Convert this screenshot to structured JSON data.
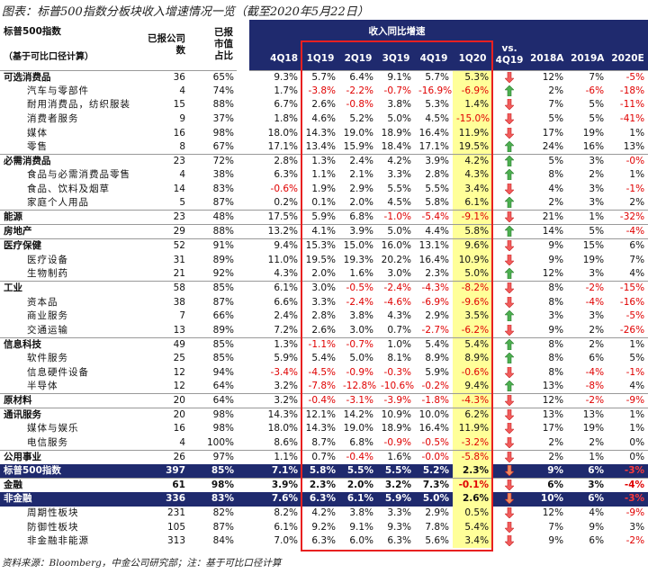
{
  "title": "图表：标普500指数分板块收入增速情况一览（截至2020年5月22日）",
  "header": {
    "name": "标普500指数",
    "name_note": "（基于可比口径计算）",
    "count": "已报公司数",
    "share": "已报市值占比",
    "growth": "收入同比增速",
    "vs": "vs. 4Q19",
    "first_quarter": "4Q18",
    "quarters": [
      "1Q19",
      "2Q19",
      "3Q19",
      "4Q19",
      "1Q20"
    ],
    "years": [
      "2018A",
      "2019A",
      "2020E"
    ]
  },
  "rows": [
    {
      "kind": "sector",
      "name": "可选消费品",
      "cells": [
        "36",
        "65%",
        "9.3%",
        "5.7%",
        "6.4%",
        "9.1%",
        "5.7%",
        "5.3%",
        "12%",
        "7%",
        "-5%"
      ],
      "trend": "down"
    },
    {
      "kind": "sub",
      "name": "汽车与零部件",
      "cells": [
        "4",
        "74%",
        "1.7%",
        "-3.8%",
        "-2.2%",
        "-0.7%",
        "-16.9%",
        "-6.9%",
        "2%",
        "-6%",
        "-18%"
      ],
      "trend": "up"
    },
    {
      "kind": "sub",
      "name": "耐用消费品，纺织服装",
      "cells": [
        "15",
        "88%",
        "6.7%",
        "2.6%",
        "-0.8%",
        "3.8%",
        "5.3%",
        "1.4%",
        "7%",
        "5%",
        "-11%"
      ],
      "trend": "down"
    },
    {
      "kind": "sub",
      "name": "消费者服务",
      "cells": [
        "9",
        "37%",
        "1.8%",
        "4.6%",
        "5.2%",
        "5.0%",
        "4.5%",
        "-15.0%",
        "5%",
        "5%",
        "-41%"
      ],
      "trend": "down"
    },
    {
      "kind": "sub",
      "name": "媒体",
      "cells": [
        "16",
        "98%",
        "18.0%",
        "14.3%",
        "19.0%",
        "18.9%",
        "16.4%",
        "11.9%",
        "17%",
        "19%",
        "1%"
      ],
      "trend": "down"
    },
    {
      "kind": "sub",
      "name": "零售",
      "cells": [
        "8",
        "67%",
        "17.1%",
        "13.4%",
        "15.9%",
        "18.4%",
        "17.1%",
        "19.5%",
        "24%",
        "16%",
        "13%"
      ],
      "trend": "up"
    },
    {
      "kind": "sector",
      "name": "必需消费品",
      "cells": [
        "23",
        "72%",
        "2.8%",
        "1.3%",
        "2.4%",
        "4.2%",
        "3.9%",
        "4.2%",
        "5%",
        "3%",
        "-0%"
      ],
      "trend": "up"
    },
    {
      "kind": "sub",
      "name": "食品与必需消费品零售",
      "cells": [
        "4",
        "38%",
        "6.3%",
        "1.1%",
        "2.1%",
        "3.3%",
        "2.8%",
        "4.3%",
        "8%",
        "2%",
        "1%"
      ],
      "trend": "up"
    },
    {
      "kind": "sub",
      "name": "食品、饮料及烟草",
      "cells": [
        "14",
        "83%",
        "-0.6%",
        "1.9%",
        "2.9%",
        "5.5%",
        "5.5%",
        "3.4%",
        "4%",
        "3%",
        "-1%"
      ],
      "trend": "down"
    },
    {
      "kind": "sub",
      "name": "家庭个人用品",
      "cells": [
        "5",
        "87%",
        "0.2%",
        "0.1%",
        "2.0%",
        "4.5%",
        "5.8%",
        "6.1%",
        "2%",
        "3%",
        "2%"
      ],
      "trend": "up"
    },
    {
      "kind": "sector",
      "name": "能源",
      "cells": [
        "23",
        "48%",
        "17.5%",
        "5.9%",
        "6.8%",
        "-1.0%",
        "-5.4%",
        "-9.1%",
        "21%",
        "1%",
        "-32%"
      ],
      "trend": "down"
    },
    {
      "kind": "sector",
      "name": "房地产",
      "cells": [
        "29",
        "88%",
        "13.2%",
        "4.1%",
        "3.9%",
        "5.0%",
        "4.4%",
        "5.8%",
        "14%",
        "5%",
        "-4%"
      ],
      "trend": "up"
    },
    {
      "kind": "sector",
      "name": "医疗保健",
      "cells": [
        "52",
        "91%",
        "9.4%",
        "15.3%",
        "15.0%",
        "16.0%",
        "13.1%",
        "9.6%",
        "9%",
        "15%",
        "6%"
      ],
      "trend": "down"
    },
    {
      "kind": "sub",
      "name": "医疗设备",
      "cells": [
        "31",
        "89%",
        "11.0%",
        "19.5%",
        "19.3%",
        "20.2%",
        "16.4%",
        "10.9%",
        "9%",
        "19%",
        "7%"
      ],
      "trend": "down"
    },
    {
      "kind": "sub",
      "name": "生物制药",
      "cells": [
        "21",
        "92%",
        "4.3%",
        "2.0%",
        "1.6%",
        "3.0%",
        "2.3%",
        "5.0%",
        "12%",
        "3%",
        "4%"
      ],
      "trend": "up"
    },
    {
      "kind": "sector",
      "name": "工业",
      "cells": [
        "58",
        "85%",
        "6.1%",
        "3.0%",
        "-0.5%",
        "-2.4%",
        "-4.3%",
        "-8.2%",
        "8%",
        "-2%",
        "-15%"
      ],
      "trend": "down"
    },
    {
      "kind": "sub",
      "name": "资本品",
      "cells": [
        "38",
        "87%",
        "6.6%",
        "3.3%",
        "-2.4%",
        "-4.6%",
        "-6.9%",
        "-9.6%",
        "8%",
        "-4%",
        "-16%"
      ],
      "trend": "down"
    },
    {
      "kind": "sub",
      "name": "商业服务",
      "cells": [
        "7",
        "66%",
        "2.4%",
        "2.8%",
        "3.8%",
        "4.3%",
        "2.9%",
        "3.5%",
        "3%",
        "3%",
        "-5%"
      ],
      "trend": "up"
    },
    {
      "kind": "sub",
      "name": "交通运输",
      "cells": [
        "13",
        "89%",
        "7.2%",
        "2.6%",
        "3.0%",
        "0.7%",
        "-2.7%",
        "-6.2%",
        "9%",
        "2%",
        "-26%"
      ],
      "trend": "down"
    },
    {
      "kind": "sector",
      "name": "信息科技",
      "cells": [
        "49",
        "85%",
        "1.3%",
        "-1.1%",
        "-0.7%",
        "1.0%",
        "5.4%",
        "5.4%",
        "8%",
        "2%",
        "1%"
      ],
      "trend": "up"
    },
    {
      "kind": "sub",
      "name": "软件服务",
      "cells": [
        "25",
        "85%",
        "5.9%",
        "5.4%",
        "5.0%",
        "8.1%",
        "8.9%",
        "8.9%",
        "8%",
        "6%",
        "5%"
      ],
      "trend": "up"
    },
    {
      "kind": "sub",
      "name": "信息硬件设备",
      "cells": [
        "12",
        "94%",
        "-3.4%",
        "-4.5%",
        "-0.9%",
        "-0.3%",
        "5.9%",
        "-0.6%",
        "8%",
        "-4%",
        "-1%"
      ],
      "trend": "down"
    },
    {
      "kind": "sub",
      "name": "半导体",
      "cells": [
        "12",
        "64%",
        "3.2%",
        "-7.8%",
        "-12.8%",
        "-10.6%",
        "-0.2%",
        "9.4%",
        "13%",
        "-8%",
        "4%"
      ],
      "trend": "up"
    },
    {
      "kind": "sector",
      "name": "原材料",
      "cells": [
        "20",
        "64%",
        "3.2%",
        "-0.4%",
        "-3.1%",
        "-3.9%",
        "-1.8%",
        "-4.3%",
        "12%",
        "-2%",
        "-9%"
      ],
      "trend": "down"
    },
    {
      "kind": "sector",
      "name": "通讯服务",
      "cells": [
        "20",
        "98%",
        "14.3%",
        "12.1%",
        "14.2%",
        "10.9%",
        "10.0%",
        "6.2%",
        "13%",
        "13%",
        "1%"
      ],
      "trend": "down"
    },
    {
      "kind": "sub",
      "name": "媒体与娱乐",
      "cells": [
        "16",
        "98%",
        "18.0%",
        "14.3%",
        "19.0%",
        "18.9%",
        "16.4%",
        "11.9%",
        "17%",
        "19%",
        "1%"
      ],
      "trend": "down"
    },
    {
      "kind": "sub",
      "name": "电信服务",
      "cells": [
        "4",
        "100%",
        "8.6%",
        "8.7%",
        "6.8%",
        "-0.9%",
        "-0.5%",
        "-3.2%",
        "2%",
        "2%",
        "0%"
      ],
      "trend": "down"
    },
    {
      "kind": "sector",
      "name": "公用事业",
      "cells": [
        "26",
        "97%",
        "1.1%",
        "0.7%",
        "-0.4%",
        "1.6%",
        "-0.0%",
        "-5.8%",
        "2%",
        "1%",
        "0%"
      ],
      "trend": "down"
    },
    {
      "kind": "total",
      "name": "标普500指数",
      "cells": [
        "397",
        "85%",
        "7.1%",
        "5.8%",
        "5.5%",
        "5.5%",
        "5.2%",
        "2.3%",
        "9%",
        "6%",
        "-3%"
      ],
      "trend": "down"
    },
    {
      "kind": "bold",
      "name": "金融",
      "cells": [
        "61",
        "98%",
        "3.9%",
        "2.3%",
        "2.0%",
        "3.2%",
        "7.3%",
        "-0.1%",
        "6%",
        "3%",
        "-4%"
      ],
      "trend": "down"
    },
    {
      "kind": "total",
      "name": "非金融",
      "cells": [
        "336",
        "83%",
        "7.6%",
        "6.3%",
        "6.1%",
        "5.9%",
        "5.0%",
        "2.6%",
        "10%",
        "6%",
        "-3%"
      ],
      "trend": "down"
    },
    {
      "kind": "sub",
      "name": "周期性板块",
      "cells": [
        "231",
        "82%",
        "8.2%",
        "4.2%",
        "3.8%",
        "3.3%",
        "2.9%",
        "0.5%",
        "12%",
        "4%",
        "-9%"
      ],
      "trend": "down"
    },
    {
      "kind": "sub",
      "name": "防御性板块",
      "cells": [
        "105",
        "87%",
        "6.1%",
        "9.2%",
        "9.1%",
        "9.3%",
        "7.8%",
        "5.4%",
        "7%",
        "9%",
        "3%"
      ],
      "trend": "down"
    },
    {
      "kind": "sub",
      "name": "非金融非能源",
      "cells": [
        "313",
        "84%",
        "7.0%",
        "6.3%",
        "6.0%",
        "6.3%",
        "5.6%",
        "3.4%",
        "9%",
        "6%",
        "-2%"
      ],
      "trend": "down"
    }
  ],
  "source": "资料来源：Bloomberg，中金公司研究部；注：基于可比口径计算"
}
